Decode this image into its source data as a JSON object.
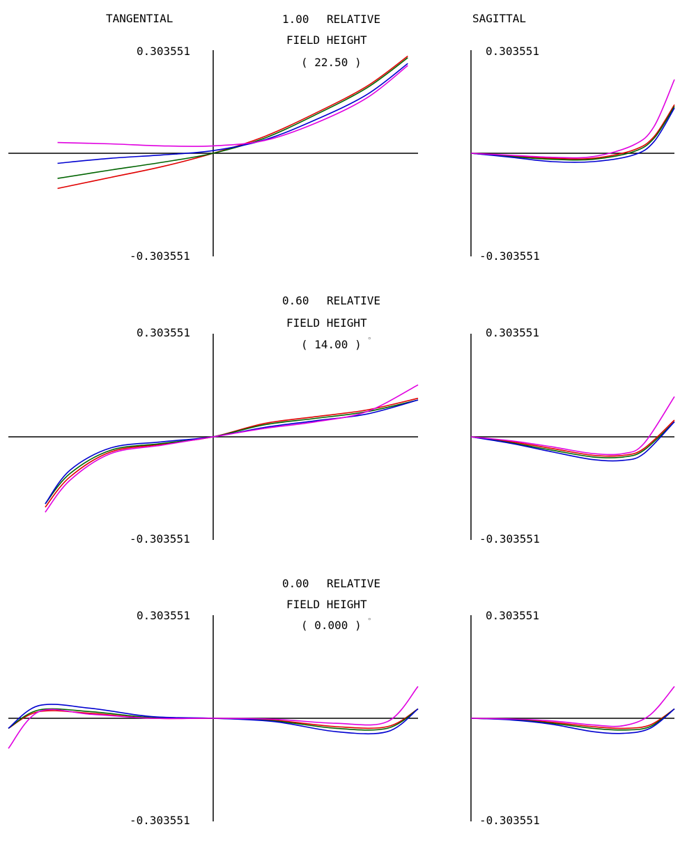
{
  "headers": {
    "tangential": "TANGENTIAL",
    "sagittal": "SAGITTAL"
  },
  "colors": {
    "red": "#e00000",
    "green": "#006400",
    "blue": "#0000d0",
    "magenta": "#e000e0",
    "axis": "#000000"
  },
  "fields": [
    {
      "relative": "1.00",
      "relative_word": "RELATIVE",
      "field_height": "FIELD HEIGHT",
      "angle": "( 22.50 )",
      "degree_sign": "°"
    },
    {
      "relative": "0.60",
      "relative_word": "RELATIVE",
      "field_height": "FIELD HEIGHT",
      "angle": "( 14.00 )",
      "degree_sign": "°"
    },
    {
      "relative": "0.00",
      "relative_word": "RELATIVE",
      "field_height": "FIELD HEIGHT",
      "angle": "( 0.000 )",
      "degree_sign": "°"
    }
  ],
  "chart_data": {
    "type": "line",
    "ylim": [
      -0.303551,
      0.303551
    ],
    "ymax_label": "0.303551",
    "ymin_label": "-0.303551",
    "xlim": [
      -1,
      1
    ],
    "sagittal_xlim": [
      0,
      1
    ],
    "series_colors": [
      "#e00000",
      "#006400",
      "#0000d0",
      "#e000e0"
    ],
    "plots": [
      {
        "panel": "tangential",
        "field": 0,
        "series": [
          {
            "color": "#e00000",
            "x": [
              -0.76,
              -0.5,
              -0.25,
              0,
              0.25,
              0.5,
              0.75,
              0.95
            ],
            "y": [
              -0.105,
              -0.072,
              -0.04,
              0,
              0.05,
              0.12,
              0.2,
              0.29
            ]
          },
          {
            "color": "#006400",
            "x": [
              -0.76,
              -0.5,
              -0.25,
              0,
              0.25,
              0.5,
              0.75,
              0.95
            ],
            "y": [
              -0.075,
              -0.05,
              -0.027,
              0,
              0.045,
              0.115,
              0.195,
              0.285
            ]
          },
          {
            "color": "#0000d0",
            "x": [
              -0.76,
              -0.5,
              -0.25,
              0,
              0.25,
              0.5,
              0.75,
              0.95
            ],
            "y": [
              -0.03,
              -0.015,
              -0.005,
              0.008,
              0.04,
              0.1,
              0.175,
              0.268
            ]
          },
          {
            "color": "#e000e0",
            "x": [
              -0.76,
              -0.5,
              -0.25,
              0,
              0.25,
              0.5,
              0.75,
              0.95
            ],
            "y": [
              0.032,
              0.028,
              0.022,
              0.022,
              0.038,
              0.09,
              0.165,
              0.262
            ]
          }
        ]
      },
      {
        "panel": "sagittal",
        "field": 0,
        "series": [
          {
            "color": "#e00000",
            "x": [
              0,
              0.2,
              0.4,
              0.6,
              0.8,
              0.9,
              1.0
            ],
            "y": [
              0,
              -0.008,
              -0.015,
              -0.015,
              0.01,
              0.05,
              0.145
            ]
          },
          {
            "color": "#006400",
            "x": [
              0,
              0.2,
              0.4,
              0.6,
              0.8,
              0.9,
              1.0
            ],
            "y": [
              0,
              -0.01,
              -0.018,
              -0.018,
              0.005,
              0.045,
              0.14
            ]
          },
          {
            "color": "#0000d0",
            "x": [
              0,
              0.2,
              0.4,
              0.6,
              0.8,
              0.9,
              1.0
            ],
            "y": [
              0,
              -0.012,
              -0.025,
              -0.025,
              -0.005,
              0.035,
              0.135
            ]
          },
          {
            "color": "#e000e0",
            "x": [
              0,
              0.2,
              0.4,
              0.6,
              0.8,
              0.9,
              1.0
            ],
            "y": [
              0,
              -0.006,
              -0.012,
              -0.01,
              0.025,
              0.08,
              0.22
            ]
          }
        ]
      },
      {
        "panel": "tangential",
        "field": 1,
        "series": [
          {
            "color": "#e00000",
            "x": [
              -0.82,
              -0.7,
              -0.5,
              -0.25,
              0,
              0.25,
              0.5,
              0.75,
              1.0
            ],
            "y": [
              -0.21,
              -0.12,
              -0.045,
              -0.022,
              0,
              0.04,
              0.06,
              0.08,
              0.115
            ]
          },
          {
            "color": "#006400",
            "x": [
              -0.82,
              -0.7,
              -0.5,
              -0.25,
              0,
              0.25,
              0.5,
              0.75,
              1.0
            ],
            "y": [
              -0.2,
              -0.11,
              -0.04,
              -0.02,
              0,
              0.036,
              0.055,
              0.075,
              0.11
            ]
          },
          {
            "color": "#0000d0",
            "x": [
              -0.82,
              -0.7,
              -0.5,
              -0.25,
              0,
              0.25,
              0.5,
              0.75,
              1.0
            ],
            "y": [
              -0.2,
              -0.1,
              -0.033,
              -0.015,
              0,
              0.028,
              0.048,
              0.068,
              0.11
            ]
          },
          {
            "color": "#e000e0",
            "x": [
              -0.82,
              -0.7,
              -0.5,
              -0.25,
              0,
              0.25,
              0.5,
              0.75,
              1.0
            ],
            "y": [
              -0.225,
              -0.13,
              -0.05,
              -0.025,
              0,
              0.025,
              0.045,
              0.075,
              0.155
            ]
          }
        ]
      },
      {
        "panel": "sagittal",
        "field": 1,
        "series": [
          {
            "color": "#e00000",
            "x": [
              0,
              0.2,
              0.4,
              0.6,
              0.75,
              0.85,
              1.0
            ],
            "y": [
              0,
              -0.015,
              -0.035,
              -0.055,
              -0.055,
              -0.035,
              0.05
            ]
          },
          {
            "color": "#006400",
            "x": [
              0,
              0.2,
              0.4,
              0.6,
              0.75,
              0.85,
              1.0
            ],
            "y": [
              0,
              -0.018,
              -0.04,
              -0.06,
              -0.06,
              -0.04,
              0.045
            ]
          },
          {
            "color": "#0000d0",
            "x": [
              0,
              0.2,
              0.4,
              0.6,
              0.75,
              0.85,
              1.0
            ],
            "y": [
              0,
              -0.02,
              -0.045,
              -0.068,
              -0.07,
              -0.05,
              0.045
            ]
          },
          {
            "color": "#e000e0",
            "x": [
              0,
              0.2,
              0.4,
              0.6,
              0.75,
              0.85,
              1.0
            ],
            "y": [
              0,
              -0.012,
              -0.03,
              -0.05,
              -0.05,
              -0.02,
              0.12
            ]
          }
        ]
      },
      {
        "panel": "tangential",
        "field": 2,
        "series": [
          {
            "color": "#e00000",
            "x": [
              -1.0,
              -0.85,
              -0.6,
              -0.3,
              0,
              0.3,
              0.6,
              0.85,
              1.0
            ],
            "y": [
              -0.03,
              0.02,
              0.015,
              0,
              0,
              -0.006,
              -0.025,
              -0.025,
              0.028
            ]
          },
          {
            "color": "#006400",
            "x": [
              -1.0,
              -0.85,
              -0.6,
              -0.3,
              0,
              0.3,
              0.6,
              0.85,
              1.0
            ],
            "y": [
              -0.03,
              0.025,
              0.02,
              0.002,
              0,
              -0.008,
              -0.03,
              -0.03,
              0.028
            ]
          },
          {
            "color": "#0000d0",
            "x": [
              -1.0,
              -0.85,
              -0.6,
              -0.3,
              0,
              0.3,
              0.6,
              0.85,
              1.0
            ],
            "y": [
              -0.03,
              0.038,
              0.03,
              0.005,
              0,
              -0.01,
              -0.04,
              -0.04,
              0.028
            ]
          },
          {
            "color": "#e000e0",
            "x": [
              -1.0,
              -0.85,
              -0.6,
              -0.3,
              0,
              0.3,
              0.6,
              0.85,
              1.0
            ],
            "y": [
              -0.09,
              0.02,
              0.012,
              0,
              0,
              -0.003,
              -0.015,
              -0.01,
              0.095
            ]
          }
        ]
      },
      {
        "panel": "sagittal",
        "field": 2,
        "series": [
          {
            "color": "#e00000",
            "x": [
              0,
              0.2,
              0.4,
              0.6,
              0.75,
              0.88,
              1.0
            ],
            "y": [
              0,
              -0.003,
              -0.012,
              -0.025,
              -0.03,
              -0.02,
              0.028
            ]
          },
          {
            "color": "#006400",
            "x": [
              0,
              0.2,
              0.4,
              0.6,
              0.75,
              0.88,
              1.0
            ],
            "y": [
              0,
              -0.004,
              -0.015,
              -0.03,
              -0.035,
              -0.025,
              0.028
            ]
          },
          {
            "color": "#0000d0",
            "x": [
              0,
              0.2,
              0.4,
              0.6,
              0.75,
              0.88,
              1.0
            ],
            "y": [
              0,
              -0.005,
              -0.018,
              -0.04,
              -0.045,
              -0.03,
              0.028
            ]
          },
          {
            "color": "#e000e0",
            "x": [
              0,
              0.2,
              0.4,
              0.6,
              0.75,
              0.88,
              1.0
            ],
            "y": [
              0,
              -0.002,
              -0.008,
              -0.02,
              -0.022,
              0.01,
              0.095
            ]
          }
        ]
      }
    ]
  }
}
